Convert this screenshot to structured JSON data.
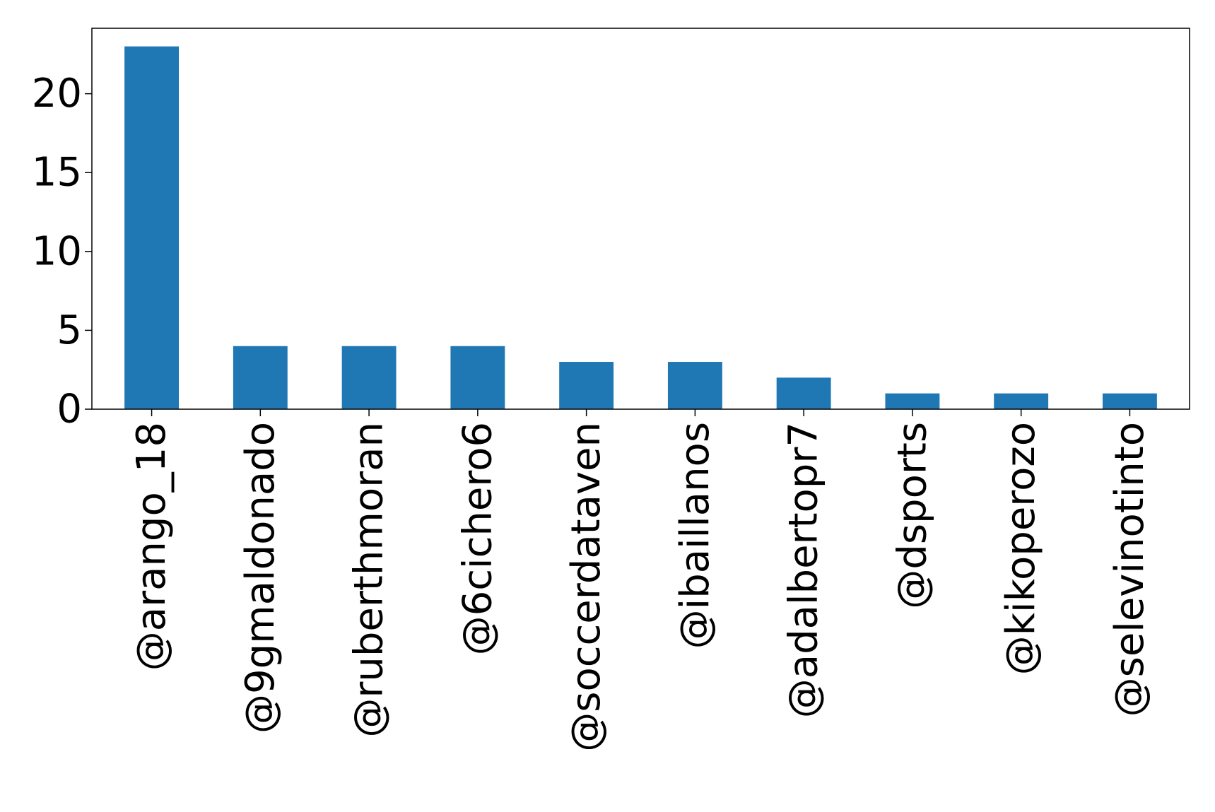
{
  "chart_data": {
    "type": "bar",
    "categories": [
      "@arango_18",
      "@9gmaldonado",
      "@ruberthmoran",
      "@6cichero6",
      "@soccerdataven",
      "@ibaillanos",
      "@adalbertopr7",
      "@dsports",
      "@kikoperozo",
      "@selevinotinto"
    ],
    "values": [
      23,
      4,
      4,
      4,
      3,
      3,
      2,
      1,
      1,
      1
    ],
    "ylim": [
      0,
      24.15
    ],
    "yticks": [
      0,
      5,
      10,
      15,
      20
    ],
    "title": "",
    "xlabel": "",
    "ylabel": "",
    "grid": false,
    "bar_color": "#1f77b4"
  }
}
